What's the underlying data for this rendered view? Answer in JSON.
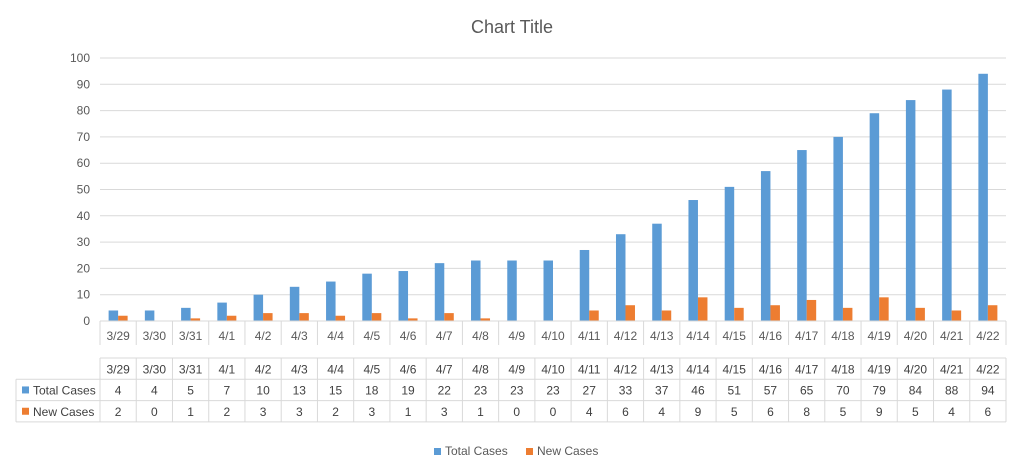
{
  "chart_data": {
    "type": "bar",
    "title": "Chart Title",
    "xlabel": "",
    "ylabel": "",
    "ylim": [
      0,
      100
    ],
    "yticks": [
      0,
      10,
      20,
      30,
      40,
      50,
      60,
      70,
      80,
      90,
      100
    ],
    "grid": true,
    "legend_position": "bottom",
    "data_table": true,
    "categories": [
      "3/29",
      "3/30",
      "3/31",
      "4/1",
      "4/2",
      "4/3",
      "4/4",
      "4/5",
      "4/6",
      "4/7",
      "4/8",
      "4/9",
      "4/10",
      "4/11",
      "4/12",
      "4/13",
      "4/14",
      "4/15",
      "4/16",
      "4/17",
      "4/18",
      "4/19",
      "4/20",
      "4/21",
      "4/22"
    ],
    "series": [
      {
        "name": "Total Cases",
        "color": "#5B9BD5",
        "values": [
          4,
          4,
          5,
          7,
          10,
          13,
          15,
          18,
          19,
          22,
          23,
          23,
          23,
          27,
          33,
          37,
          46,
          51,
          57,
          65,
          70,
          79,
          84,
          88,
          94
        ]
      },
      {
        "name": "New Cases",
        "color": "#ED7D31",
        "values": [
          2,
          0,
          1,
          2,
          3,
          3,
          2,
          3,
          1,
          3,
          1,
          0,
          0,
          4,
          6,
          4,
          9,
          5,
          6,
          8,
          5,
          9,
          5,
          4,
          6
        ]
      }
    ]
  }
}
